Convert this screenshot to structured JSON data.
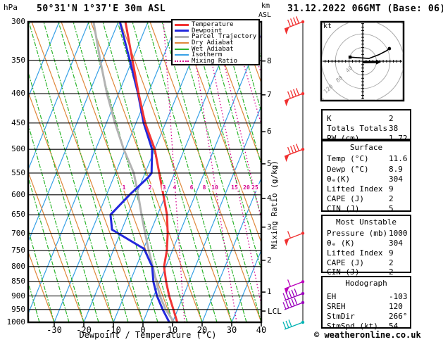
{
  "header": {
    "station_title": "50°31'N 1°37'E 30m ASL",
    "datetime_title": "31.12.2022 06GMT (Base: 06)"
  },
  "labels": {
    "hpa": "hPa",
    "km": "km",
    "asl": "ASL",
    "kt": "kt",
    "lcl": "LCL",
    "mixing_axis": "Mixing Ratio (g/kg)"
  },
  "axes": {
    "x_label": "Dewpoint / Temperature (°C)",
    "x_ticks": [
      -30,
      -20,
      -10,
      0,
      10,
      20,
      30,
      40
    ],
    "pressure_ticks": [
      300,
      350,
      400,
      450,
      500,
      550,
      600,
      650,
      700,
      750,
      800,
      850,
      900,
      950,
      1000
    ],
    "km_ticks": [
      8,
      7,
      6,
      5,
      4,
      3,
      2,
      1
    ],
    "mixing_ratio_labels": [
      1,
      2,
      3,
      4,
      6,
      8,
      10,
      15,
      20,
      25
    ]
  },
  "legend": [
    {
      "label": "Temperature",
      "color": "#f23535",
      "weight": 3,
      "dash": "solid"
    },
    {
      "label": "Dewpoint",
      "color": "#2328dd",
      "weight": 3,
      "dash": "solid"
    },
    {
      "label": "Parcel Trajectory",
      "color": "#b3b3b3",
      "weight": 3,
      "dash": "solid"
    },
    {
      "label": "Dry Adiabat",
      "color": "#e0883c",
      "weight": 2,
      "dash": "solid"
    },
    {
      "label": "Wet Adiabat",
      "color": "#2cb52c",
      "weight": 2,
      "dash": "solid"
    },
    {
      "label": "Isotherm",
      "color": "#38a1e6",
      "weight": 2,
      "dash": "solid"
    },
    {
      "label": "Mixing Ratio",
      "color": "#d4008c",
      "weight": 2,
      "dash": "dotted"
    }
  ],
  "table": {
    "sections": [
      {
        "title": null,
        "rows": [
          [
            "K",
            "2"
          ],
          [
            "Totals Totals",
            "38"
          ],
          [
            "PW (cm)",
            "1.72"
          ]
        ]
      },
      {
        "title": "Surface",
        "rows": [
          [
            "Temp (°C)",
            "11.6"
          ],
          [
            "Dewp (°C)",
            "8.9"
          ],
          [
            "θₑ(K)",
            "304"
          ],
          [
            "Lifted Index",
            "9"
          ],
          [
            "CAPE (J)",
            "2"
          ],
          [
            "CIN (J)",
            "5"
          ]
        ]
      },
      {
        "title": "Most Unstable",
        "rows": [
          [
            "Pressure (mb)",
            "1000"
          ],
          [
            "θₑ (K)",
            "304"
          ],
          [
            "Lifted Index",
            "9"
          ],
          [
            "CAPE (J)",
            "2"
          ],
          [
            "CIN (J)",
            "2"
          ]
        ]
      },
      {
        "title": "Hodograph",
        "rows": [
          [
            "EH",
            "-103"
          ],
          [
            "SREH",
            "120"
          ],
          [
            "StmDir",
            "266°"
          ],
          [
            "StmSpd (kt)",
            "54"
          ]
        ]
      }
    ]
  },
  "copyright": "© weatheronline.co.uk",
  "chart_data": {
    "type": "skew-t-log-p-sounding",
    "title": "50°31'N 1°37'E 30m ASL",
    "datetime": "31.12.2022 06GMT (Base: 06)",
    "pressure_axis_hpa": [
      300,
      1000
    ],
    "temp_axis_c": [
      -40,
      40
    ],
    "temperature_profile": [
      {
        "p": 1000,
        "t": 11.6
      },
      {
        "p": 950,
        "t": 8.5
      },
      {
        "p": 900,
        "t": 5.2
      },
      {
        "p": 850,
        "t": 2.2
      },
      {
        "p": 800,
        "t": -0.6
      },
      {
        "p": 750,
        "t": -1.9
      },
      {
        "p": 700,
        "t": -4.0
      },
      {
        "p": 650,
        "t": -6.8
      },
      {
        "p": 600,
        "t": -10.8
      },
      {
        "p": 550,
        "t": -15.2
      },
      {
        "p": 500,
        "t": -20.0
      },
      {
        "p": 450,
        "t": -26.9
      },
      {
        "p": 400,
        "t": -33.2
      },
      {
        "p": 350,
        "t": -39.9
      },
      {
        "p": 300,
        "t": -47.6
      }
    ],
    "dewpoint_profile": [
      {
        "p": 1000,
        "t": 8.9
      },
      {
        "p": 950,
        "t": 4.9
      },
      {
        "p": 900,
        "t": 1.1
      },
      {
        "p": 850,
        "t": -2.1
      },
      {
        "p": 800,
        "t": -4.6
      },
      {
        "p": 745,
        "t": -9.8
      },
      {
        "p": 690,
        "t": -23.3
      },
      {
        "p": 650,
        "t": -25.9
      },
      {
        "p": 600,
        "t": -22.2
      },
      {
        "p": 560,
        "t": -18.4
      },
      {
        "p": 550,
        "t": -17.8
      },
      {
        "p": 500,
        "t": -20.9
      },
      {
        "p": 450,
        "t": -27.4
      },
      {
        "p": 400,
        "t": -33.4
      },
      {
        "p": 350,
        "t": -40.8
      },
      {
        "p": 300,
        "t": -49.5
      }
    ],
    "parcel_profile": [
      {
        "p": 1000,
        "t": 10.5
      },
      {
        "p": 950,
        "t": 5.9
      },
      {
        "p": 900,
        "t": 2.1
      },
      {
        "p": 850,
        "t": -1.1
      },
      {
        "p": 800,
        "t": -4.4
      },
      {
        "p": 750,
        "t": -8.0
      },
      {
        "p": 700,
        "t": -11.6
      },
      {
        "p": 650,
        "t": -15.4
      },
      {
        "p": 600,
        "t": -19.3
      },
      {
        "p": 550,
        "t": -23.8
      },
      {
        "p": 500,
        "t": -30.5
      },
      {
        "p": 450,
        "t": -37.1
      },
      {
        "p": 400,
        "t": -43.9
      },
      {
        "p": 350,
        "t": -50.8
      },
      {
        "p": 300,
        "t": -58.4
      }
    ],
    "km_asl_ticks": [
      {
        "km": 8,
        "p": 351
      },
      {
        "km": 7,
        "p": 402
      },
      {
        "km": 6,
        "p": 466
      },
      {
        "km": 5,
        "p": 530
      },
      {
        "km": 4,
        "p": 609
      },
      {
        "km": 3,
        "p": 683
      },
      {
        "km": 2,
        "p": 780
      },
      {
        "km": 1,
        "p": 886
      }
    ],
    "lcl": {
      "p": 956
    },
    "wind_barbs": [
      {
        "p": 300,
        "speed_kt": 90,
        "color": "#f03030",
        "pennants": 1,
        "feathers": 4
      },
      {
        "p": 400,
        "speed_kt": 90,
        "color": "#f03030",
        "pennants": 1,
        "feathers": 4
      },
      {
        "p": 500,
        "speed_kt": 90,
        "color": "#f03030",
        "pennants": 1,
        "feathers": 4
      },
      {
        "p": 700,
        "speed_kt": 60,
        "color": "#f03030",
        "pennants": 1,
        "feathers": 1
      },
      {
        "p": 850,
        "speed_kt": 60,
        "color": "#bb00bb",
        "pennants": 1,
        "feathers": 1
      },
      {
        "p": 891,
        "speed_kt": 50,
        "color": "#9900bb",
        "pennants": 0,
        "feathers": 5
      },
      {
        "p": 924,
        "speed_kt": 50,
        "color": "#9900bb",
        "pennants": 0,
        "feathers": 5
      },
      {
        "p": 1000,
        "speed_kt": 35,
        "color": "#00b3b3",
        "pennants": 0,
        "feathers": 3
      }
    ],
    "hodograph": {
      "unit": "kt",
      "ring_labels_kt": [
        40,
        80,
        120
      ],
      "trace_u_v_kt": [
        [
          -37,
          12
        ],
        [
          -6,
          10
        ],
        [
          18,
          8
        ],
        [
          47,
          19
        ],
        [
          70,
          31
        ],
        [
          78,
          37
        ]
      ],
      "storm_vector_kt": {
        "dir_deg": 266,
        "speed_kt": 54
      }
    },
    "indices": {
      "K": 2,
      "Totals_Totals": 38,
      "PW_cm": 1.72,
      "surface": {
        "temp_c": 11.6,
        "dewp_c": 8.9,
        "theta_e_k": 304,
        "lifted_index": 9,
        "cape_j": 2,
        "cin_j": 5
      },
      "most_unstable": {
        "pressure_mb": 1000,
        "theta_e_k": 304,
        "lifted_index": 9,
        "cape_j": 2,
        "cin_j": 2
      },
      "hodograph": {
        "EH": -103,
        "SREH": 120,
        "StmDir_deg": 266,
        "StmSpd_kt": 54
      }
    }
  }
}
